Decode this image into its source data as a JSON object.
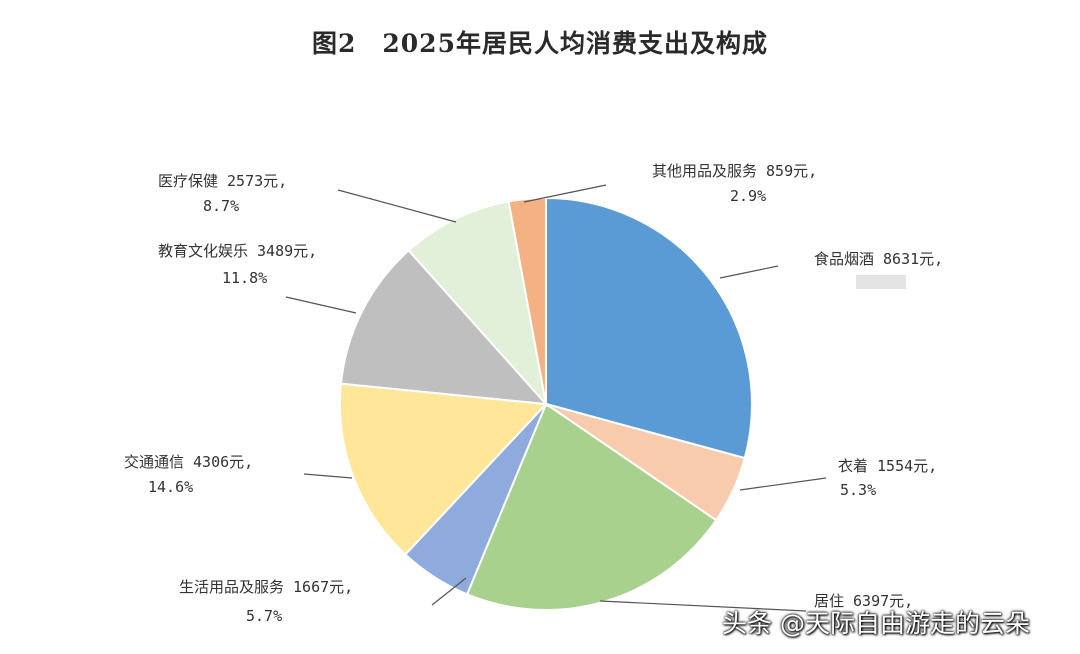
{
  "watermark": "头条 @天际自由游走的云朵",
  "chart_data": {
    "type": "pie",
    "title": "图2　2025年居民人均消费支出及构成",
    "start_angle": 0,
    "direction": "clockwise",
    "slices": [
      {
        "name": "食品烟酒",
        "amount": "8631元",
        "percent_text": "",
        "value": 29.2,
        "color": "#5b9bd5"
      },
      {
        "name": "衣着",
        "amount": "1554元",
        "percent_text": "5.3%",
        "value": 5.3,
        "color": "#f8cbad"
      },
      {
        "name": "居住",
        "amount": "6397元",
        "percent_text": "",
        "value": 21.7,
        "color": "#a9d18e"
      },
      {
        "name": "生活用品及服务",
        "amount": "1667元",
        "percent_text": "5.7%",
        "value": 5.7,
        "color": "#8faadc"
      },
      {
        "name": "交通通信",
        "amount": "4306元",
        "percent_text": "14.6%",
        "value": 14.6,
        "color": "#ffe699"
      },
      {
        "name": "教育文化娱乐",
        "amount": "3489元",
        "percent_text": "11.8%",
        "value": 11.8,
        "color": "#bfbfbf"
      },
      {
        "name": "医疗保健",
        "amount": "2573元",
        "percent_text": "8.7%",
        "value": 8.7,
        "color": "#e2efd9"
      },
      {
        "name": "其他用品及服务",
        "amount": "859元",
        "percent_text": "2.9%",
        "value": 2.9,
        "color": "#f4b183"
      }
    ]
  }
}
